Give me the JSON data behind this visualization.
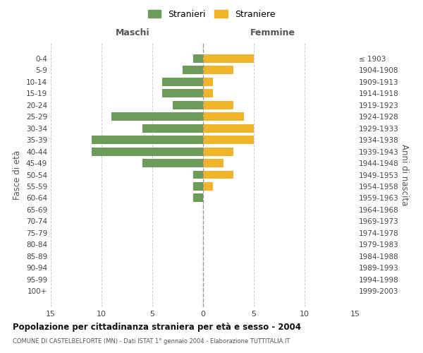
{
  "age_groups": [
    "0-4",
    "5-9",
    "10-14",
    "15-19",
    "20-24",
    "25-29",
    "30-34",
    "35-39",
    "40-44",
    "45-49",
    "50-54",
    "55-59",
    "60-64",
    "65-69",
    "70-74",
    "75-79",
    "80-84",
    "85-89",
    "90-94",
    "95-99",
    "100+"
  ],
  "birth_years": [
    "1999-2003",
    "1994-1998",
    "1989-1993",
    "1984-1988",
    "1979-1983",
    "1974-1978",
    "1969-1973",
    "1964-1968",
    "1959-1963",
    "1954-1958",
    "1949-1953",
    "1944-1948",
    "1939-1943",
    "1934-1938",
    "1929-1933",
    "1924-1928",
    "1919-1923",
    "1914-1918",
    "1909-1913",
    "1904-1908",
    "≤ 1903"
  ],
  "maschi": [
    1,
    2,
    4,
    4,
    3,
    9,
    6,
    11,
    11,
    6,
    1,
    1,
    1,
    0,
    0,
    0,
    0,
    0,
    0,
    0,
    0
  ],
  "femmine": [
    5,
    3,
    1,
    1,
    3,
    4,
    5,
    5,
    3,
    2,
    3,
    1,
    0,
    0,
    0,
    0,
    0,
    0,
    0,
    0,
    0
  ],
  "color_maschi": "#6d9b5a",
  "color_femmine": "#f0b429",
  "title": "Popolazione per cittadinanza straniera per età e sesso - 2004",
  "subtitle": "COMUNE DI CASTELBELFORTE (MN) - Dati ISTAT 1° gennaio 2004 - Elaborazione TUTTITALIA.IT",
  "xlabel_left": "Maschi",
  "xlabel_right": "Femmine",
  "ylabel_left": "Fasce di età",
  "ylabel_right": "Anni di nascita",
  "legend_maschi": "Stranieri",
  "legend_femmine": "Straniere",
  "xlim": 15,
  "background_color": "#ffffff",
  "grid_color": "#cccccc"
}
